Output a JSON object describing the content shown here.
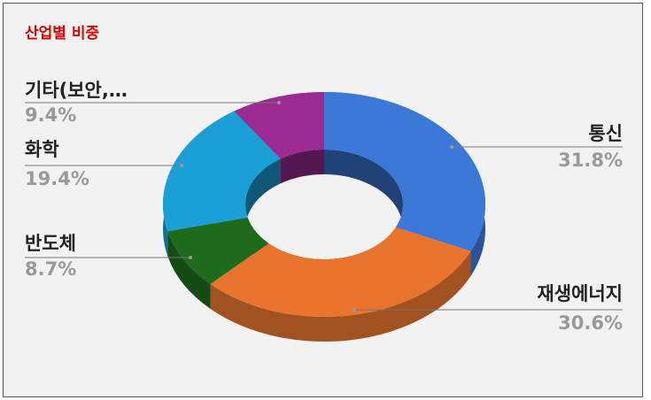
{
  "chart_data": {
    "type": "pie",
    "title": "산업별 비중",
    "categories": [
      "통신",
      "재생에너지",
      "반도체",
      "화학",
      "기타(보안,…"
    ],
    "values": [
      31.8,
      30.6,
      8.7,
      19.4,
      9.4
    ],
    "value_labels": [
      "31.8%",
      "30.6%",
      "8.7%",
      "19.4%",
      "9.4%"
    ],
    "colors": [
      "#3c78d8",
      "#e8742e",
      "#1e6b1e",
      "#1a9fd6",
      "#9b2a93"
    ],
    "donut": true,
    "three_d": true
  }
}
